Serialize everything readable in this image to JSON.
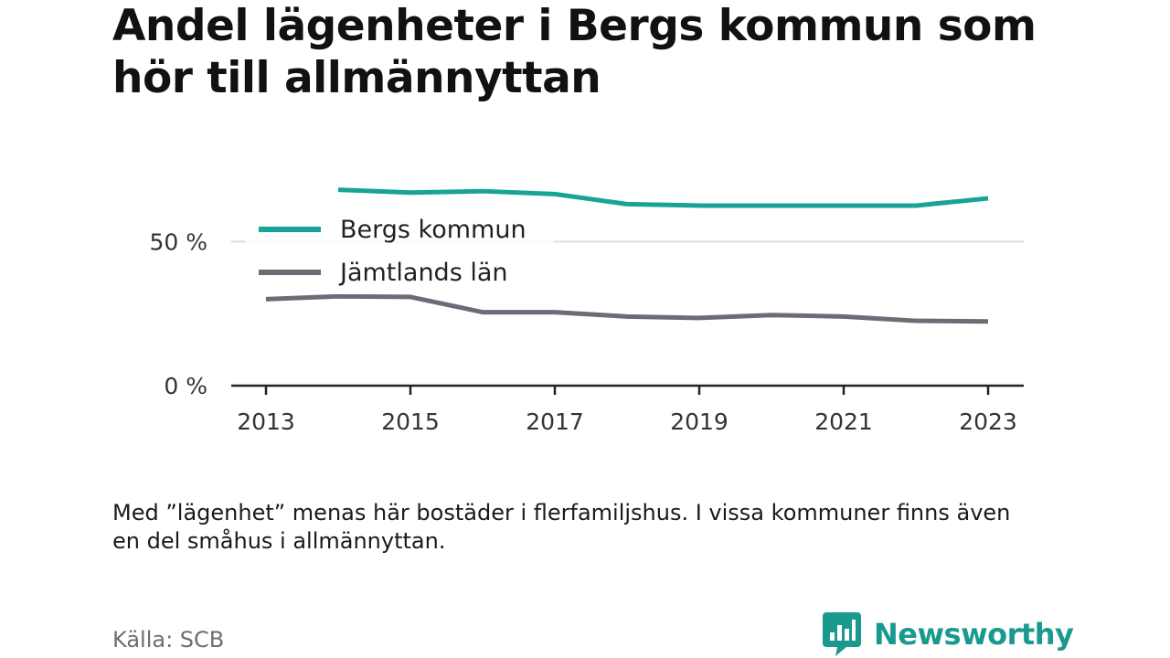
{
  "title": "Andel lägenheter i Bergs kommun som hör till allmännyttan",
  "note": "Med ”lägenhet” menas här bostäder i flerfamiljshus. I vissa kommuner finns även en del småhus i allmännyttan.",
  "source": "Källa: SCB",
  "brand": {
    "name": "Newsworthy",
    "icon": "newsworthy-logo-icon"
  },
  "colors": {
    "berg": "#17a398",
    "jamtland": "#6d6c76",
    "grid": "#dddddd",
    "axis": "#222222",
    "brand": "#1a9a8f"
  },
  "chart_data": {
    "type": "line",
    "x": [
      2013,
      2014,
      2015,
      2016,
      2017,
      2018,
      2019,
      2020,
      2021,
      2022,
      2023
    ],
    "xticks": [
      "2013",
      "2015",
      "2017",
      "2019",
      "2021",
      "2023"
    ],
    "yticks": [
      {
        "value": 0,
        "label": "0 %"
      },
      {
        "value": 50,
        "label": "50 %"
      }
    ],
    "ylim": [
      0,
      72
    ],
    "series": [
      {
        "name": "Bergs kommun",
        "color": "#17a398",
        "values": [
          null,
          68,
          67,
          67.5,
          66.5,
          63,
          62.5,
          62.5,
          62.5,
          62.5,
          65
        ]
      },
      {
        "name": "Jämtlands län",
        "color": "#6d6c76",
        "values": [
          30,
          31,
          30.8,
          25.5,
          25.5,
          24,
          23.5,
          24.5,
          24,
          22.5,
          22.3
        ]
      }
    ],
    "legend": "top-left",
    "grid": true
  }
}
